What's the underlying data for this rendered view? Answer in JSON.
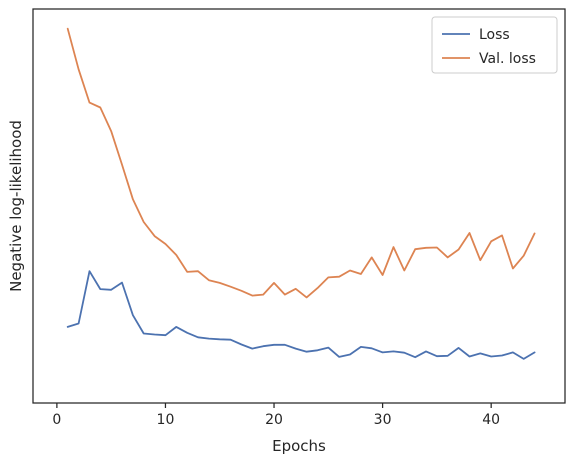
{
  "chart_data": {
    "type": "line",
    "title": "",
    "xlabel": "Epochs",
    "ylabel": "Negative log-likelihood",
    "x": [
      1,
      2,
      3,
      4,
      5,
      6,
      7,
      8,
      9,
      10,
      11,
      12,
      13,
      14,
      15,
      16,
      17,
      18,
      19,
      20,
      21,
      22,
      23,
      24,
      25,
      26,
      27,
      28,
      29,
      30,
      31,
      32,
      33,
      34,
      35,
      36,
      37,
      38,
      39,
      40,
      41,
      42,
      43,
      44
    ],
    "xlim": [
      -2.2,
      46.8
    ],
    "xticks": [
      0,
      10,
      20,
      30,
      40
    ],
    "xtick_labels": [
      "0",
      "10",
      "20",
      "30",
      "40"
    ],
    "ylim": [
      0,
      1
    ],
    "y_ticks_shown": false,
    "grid": false,
    "legend_position": "top-right",
    "series": [
      {
        "name": "Loss",
        "color": "#4c72b0",
        "values": [
          0.131,
          0.141,
          0.293,
          0.241,
          0.239,
          0.26,
          0.165,
          0.112,
          0.109,
          0.107,
          0.131,
          0.114,
          0.101,
          0.097,
          0.095,
          0.094,
          0.08,
          0.068,
          0.075,
          0.079,
          0.079,
          0.068,
          0.059,
          0.063,
          0.071,
          0.044,
          0.051,
          0.073,
          0.069,
          0.057,
          0.06,
          0.056,
          0.043,
          0.06,
          0.046,
          0.047,
          0.07,
          0.045,
          0.054,
          0.045,
          0.048,
          0.057,
          0.038,
          0.057
        ]
      },
      {
        "name": "Val. loss",
        "color": "#dd8452",
        "values": [
          0.998,
          0.88,
          0.783,
          0.769,
          0.7,
          0.603,
          0.502,
          0.436,
          0.395,
          0.372,
          0.34,
          0.291,
          0.293,
          0.267,
          0.259,
          0.248,
          0.236,
          0.222,
          0.225,
          0.259,
          0.225,
          0.242,
          0.217,
          0.244,
          0.275,
          0.277,
          0.295,
          0.285,
          0.333,
          0.282,
          0.363,
          0.295,
          0.357,
          0.361,
          0.362,
          0.333,
          0.356,
          0.404,
          0.325,
          0.38,
          0.397,
          0.301,
          0.338,
          0.403
        ]
      }
    ]
  }
}
